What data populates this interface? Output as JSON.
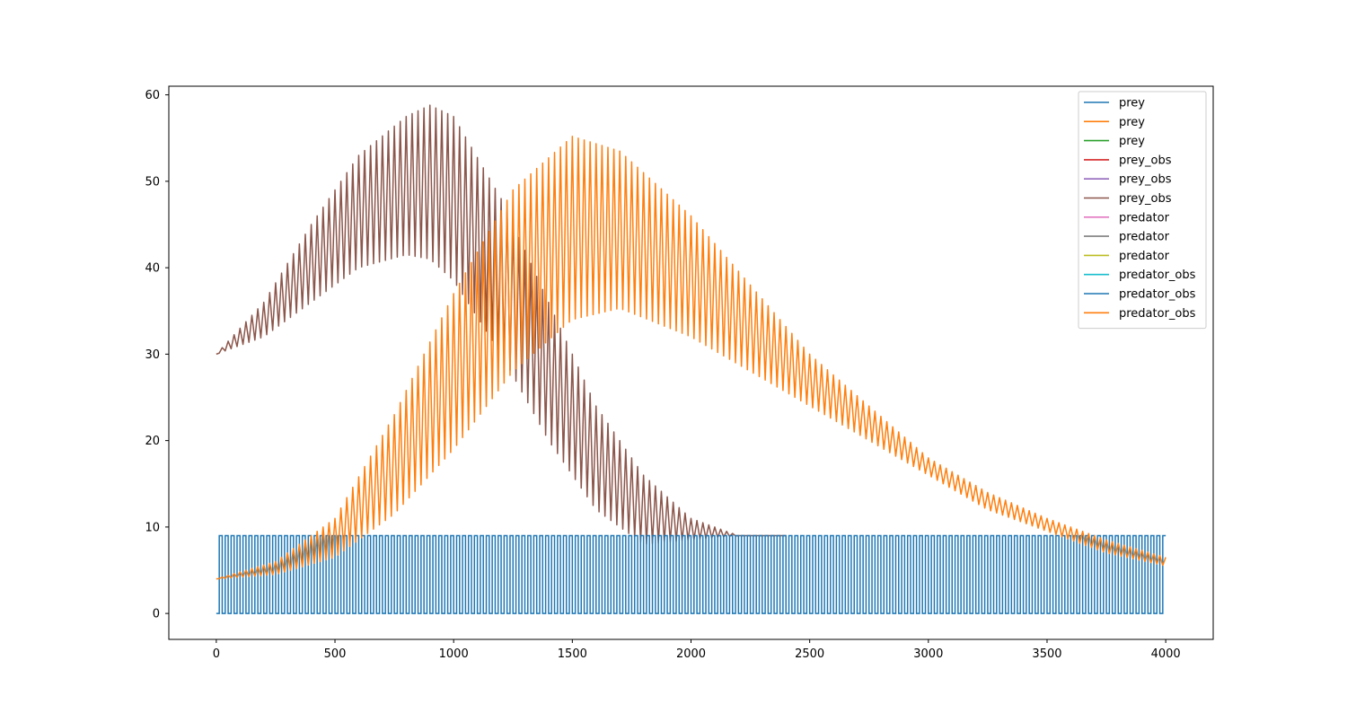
{
  "colors": {
    "prey_1": "#1f77b4",
    "prey_2": "#ff7f0e",
    "prey_3": "#2ca02c",
    "prey_obs_1": "#d62728",
    "prey_obs_2": "#9467bd",
    "prey_obs_3": "#8c564b",
    "predator_1": "#e377c2",
    "predator_2": "#7f7f7f",
    "predator_3": "#bcbd22",
    "predator_obs_1": "#17becf",
    "predator_obs_2": "#1f77b4",
    "predator_obs_3": "#ff7f0e"
  },
  "chart_data": {
    "type": "line",
    "title": "",
    "xlabel": "",
    "ylabel": "",
    "xlim": [
      -200,
      4200
    ],
    "ylim": [
      -3,
      61
    ],
    "xticks": [
      0,
      500,
      1000,
      1500,
      2000,
      2500,
      3000,
      3500,
      4000
    ],
    "yticks": [
      0,
      10,
      20,
      30,
      40,
      50,
      60
    ],
    "grid": false,
    "legend_position": "top-right",
    "series": [
      {
        "name": "prey",
        "color": "#1f77b4",
        "visible": false
      },
      {
        "name": "prey",
        "color": "#ff7f0e",
        "visible": false
      },
      {
        "name": "prey",
        "color": "#2ca02c",
        "visible": false
      },
      {
        "name": "prey_obs",
        "color": "#d62728",
        "visible": false
      },
      {
        "name": "prey_obs",
        "color": "#9467bd",
        "visible": false
      },
      {
        "name": "prey_obs",
        "color": "#8c564b",
        "x": [
          0,
          200,
          400,
          600,
          800,
          900,
          1000,
          1200,
          1400,
          1600,
          1800,
          2000,
          2200,
          2400
        ],
        "upper": [
          30,
          36,
          45,
          53,
          57.5,
          58.8,
          57.5,
          48,
          36,
          24,
          16,
          11,
          9,
          9
        ],
        "lower": [
          30,
          32,
          36,
          40,
          41.5,
          41,
          38.5,
          30,
          20,
          12,
          8,
          8.5,
          9,
          9
        ]
      },
      {
        "name": "predator",
        "color": "#e377c2",
        "visible": false
      },
      {
        "name": "predator",
        "color": "#7f7f7f",
        "visible": false
      },
      {
        "name": "predator",
        "color": "#bcbd22",
        "visible": false
      },
      {
        "name": "predator_obs",
        "color": "#17becf",
        "visible": false
      },
      {
        "name": "predator_obs",
        "color": "#1f77b4",
        "x_range": [
          0,
          4000
        ],
        "min": 0,
        "max": 9,
        "period": 25
      },
      {
        "name": "predator_obs",
        "color": "#ff7f0e",
        "x": [
          0,
          250,
          500,
          750,
          1000,
          1250,
          1500,
          1700,
          2000,
          2250,
          2500,
          2750,
          3000,
          3250,
          3500,
          3750,
          4000
        ],
        "upper": [
          4,
          6,
          11,
          23,
          37,
          49,
          55.2,
          53.5,
          46,
          38,
          30,
          24,
          18,
          14,
          11,
          8.5,
          6.5
        ],
        "lower": [
          4,
          4.5,
          6.5,
          11.5,
          19,
          28,
          34,
          35.3,
          32,
          28,
          24,
          20,
          16,
          12,
          9.5,
          7,
          5.5
        ]
      }
    ]
  }
}
